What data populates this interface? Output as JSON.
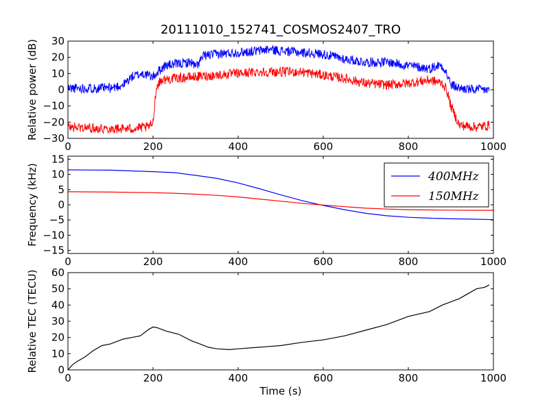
{
  "figure_title": "20111010_152741_COSMOS2407_TRO",
  "chart_data": [
    {
      "type": "line",
      "ylabel": "Relative power (dB)",
      "xlabel": "",
      "xlim": [
        0,
        1000
      ],
      "ylim": [
        -30,
        30
      ],
      "xticks": [
        0,
        200,
        400,
        600,
        800,
        1000
      ],
      "yticks": [
        -30,
        -20,
        -10,
        0,
        10,
        20,
        30
      ],
      "grid": false,
      "series": [
        {
          "color": "#0000ff",
          "noise": 3,
          "x": [
            0,
            100,
            130,
            150,
            175,
            200,
            215,
            230,
            260,
            290,
            300,
            320,
            350,
            400,
            450,
            470,
            500,
            550,
            600,
            650,
            700,
            750,
            800,
            850,
            870,
            880,
            890,
            900,
            920,
            950,
            990
          ],
          "y": [
            1,
            1,
            3,
            8,
            10,
            8,
            12,
            15,
            16,
            17,
            14,
            21,
            22,
            23,
            24,
            25,
            24,
            23,
            22,
            19,
            17,
            17,
            15,
            13,
            15,
            15,
            10,
            3,
            1,
            0,
            0
          ]
        },
        {
          "color": "#ff0000",
          "noise": 3,
          "x": [
            0,
            100,
            150,
            190,
            200,
            205,
            210,
            220,
            250,
            300,
            350,
            400,
            450,
            500,
            550,
            600,
            650,
            700,
            750,
            800,
            850,
            880,
            890,
            900,
            920,
            960,
            990
          ],
          "y": [
            -23,
            -24,
            -24,
            -23,
            -20,
            -5,
            3,
            6,
            7,
            8,
            9,
            10,
            11,
            11,
            11,
            9,
            7,
            4,
            3,
            4,
            6,
            4,
            0,
            -10,
            -22,
            -23,
            -22
          ]
        }
      ]
    },
    {
      "type": "line",
      "ylabel": "Frequency (kHz)",
      "xlabel": "",
      "xlim": [
        0,
        1000
      ],
      "ylim": [
        -16,
        16
      ],
      "xticks": [
        0,
        200,
        400,
        600,
        800,
        1000
      ],
      "yticks": [
        -15,
        -10,
        -5,
        0,
        5,
        10,
        15
      ],
      "grid": false,
      "legend_position": "upper-right",
      "series": [
        {
          "name": "400MHz",
          "color": "#0000ff",
          "noise": 0,
          "x": [
            0,
            100,
            200,
            250,
            300,
            350,
            400,
            450,
            500,
            550,
            600,
            650,
            700,
            750,
            800,
            850,
            900,
            950,
            1000
          ],
          "y": [
            11.5,
            11.4,
            10.9,
            10.6,
            9.7,
            8.7,
            7.2,
            5.3,
            3.3,
            1.4,
            -0.2,
            -1.6,
            -2.8,
            -3.6,
            -4.1,
            -4.4,
            -4.6,
            -4.7,
            -4.9
          ]
        },
        {
          "name": "150MHz",
          "color": "#ff0000",
          "noise": 0,
          "x": [
            0,
            100,
            200,
            250,
            300,
            350,
            400,
            450,
            500,
            550,
            600,
            650,
            700,
            750,
            800,
            850,
            900,
            950,
            1000
          ],
          "y": [
            4.3,
            4.2,
            4.0,
            3.8,
            3.5,
            3.1,
            2.6,
            1.9,
            1.2,
            0.5,
            -0.1,
            -0.6,
            -1.1,
            -1.4,
            -1.6,
            -1.7,
            -1.75,
            -1.8,
            -1.8
          ]
        }
      ]
    },
    {
      "type": "line",
      "ylabel": "Relative TEC (TECU)",
      "xlabel": "Time (s)",
      "xlim": [
        0,
        1000
      ],
      "ylim": [
        0,
        60
      ],
      "xticks": [
        0,
        200,
        400,
        600,
        800,
        1000
      ],
      "yticks": [
        0,
        10,
        20,
        30,
        40,
        50,
        60
      ],
      "grid": false,
      "series": [
        {
          "color": "#000000",
          "noise": 0,
          "x": [
            0,
            10,
            20,
            40,
            60,
            80,
            100,
            130,
            150,
            170,
            190,
            200,
            210,
            230,
            260,
            290,
            310,
            330,
            350,
            380,
            400,
            450,
            500,
            550,
            600,
            650,
            700,
            750,
            800,
            850,
            880,
            900,
            920,
            940,
            960,
            980,
            990
          ],
          "y": [
            0,
            3,
            5,
            8,
            12,
            15,
            16,
            19,
            20,
            21,
            25,
            26.5,
            26,
            24,
            22,
            18,
            16,
            14,
            13,
            12.5,
            13,
            14,
            15,
            17,
            18.5,
            21,
            24.5,
            28,
            33,
            36,
            40,
            42,
            44,
            47,
            50,
            51,
            52.5
          ]
        }
      ]
    }
  ]
}
